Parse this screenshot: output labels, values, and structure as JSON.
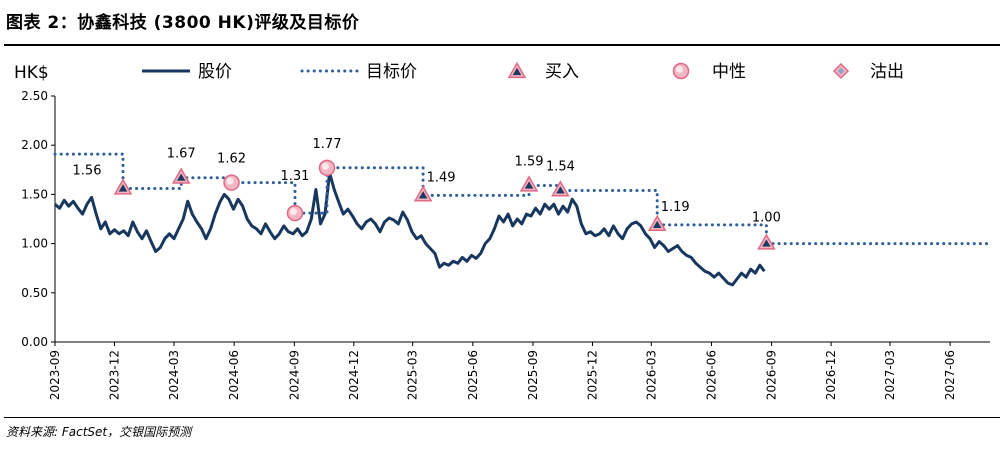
{
  "title": "图表 2：协鑫科技 (3800 HK)评级及目标价",
  "source": "资料来源: FactSet，交银国际预测",
  "colors": {
    "price": "#17375e",
    "target": "#2e5f9a",
    "marker_fill": "#f4b6c2",
    "marker_edge": "#e06a86",
    "buy_fill": "#1f3a60",
    "sell_fill": "#8fa8c8",
    "axis": "#000000"
  },
  "chart_data": {
    "type": "line",
    "unit_label": "HK$",
    "ylim": [
      0.0,
      2.5
    ],
    "y_ticks": [
      "0.00",
      "0.50",
      "1.00",
      "1.50",
      "2.00",
      "2.50"
    ],
    "x_ticks": [
      "2023-09",
      "2023-12",
      "2024-03",
      "2024-06",
      "2024-09",
      "2024-12",
      "2025-03",
      "2025-06",
      "2025-09",
      "2025-12",
      "2026-03",
      "2026-06",
      "2026-09",
      "2026-12",
      "2027-03",
      "2027-06"
    ],
    "xlim": [
      "2023-09-01",
      "2027-08-01"
    ],
    "legend": {
      "price": "股价",
      "target": "目标价",
      "buy": "买入",
      "neutral": "中性",
      "sell": "沽出"
    },
    "series": [
      {
        "name": "股价",
        "style": "solid",
        "points": [
          [
            "2023-09-01",
            1.4
          ],
          [
            "2023-09-08",
            1.36
          ],
          [
            "2023-09-15",
            1.44
          ],
          [
            "2023-09-22",
            1.38
          ],
          [
            "2023-09-29",
            1.43
          ],
          [
            "2023-10-06",
            1.36
          ],
          [
            "2023-10-13",
            1.3
          ],
          [
            "2023-10-20",
            1.4
          ],
          [
            "2023-10-27",
            1.47
          ],
          [
            "2023-11-03",
            1.3
          ],
          [
            "2023-11-10",
            1.15
          ],
          [
            "2023-11-17",
            1.22
          ],
          [
            "2023-11-24",
            1.1
          ],
          [
            "2023-12-01",
            1.14
          ],
          [
            "2023-12-08",
            1.1
          ],
          [
            "2023-12-15",
            1.13
          ],
          [
            "2023-12-22",
            1.08
          ],
          [
            "2023-12-29",
            1.22
          ],
          [
            "2024-01-05",
            1.12
          ],
          [
            "2024-01-12",
            1.05
          ],
          [
            "2024-01-19",
            1.13
          ],
          [
            "2024-01-26",
            1.02
          ],
          [
            "2024-02-02",
            0.92
          ],
          [
            "2024-02-09",
            0.96
          ],
          [
            "2024-02-16",
            1.05
          ],
          [
            "2024-02-23",
            1.1
          ],
          [
            "2024-03-01",
            1.05
          ],
          [
            "2024-03-08",
            1.15
          ],
          [
            "2024-03-15",
            1.25
          ],
          [
            "2024-03-22",
            1.43
          ],
          [
            "2024-03-29",
            1.3
          ],
          [
            "2024-04-05",
            1.22
          ],
          [
            "2024-04-12",
            1.15
          ],
          [
            "2024-04-19",
            1.05
          ],
          [
            "2024-04-26",
            1.15
          ],
          [
            "2024-05-03",
            1.3
          ],
          [
            "2024-05-10",
            1.42
          ],
          [
            "2024-05-17",
            1.5
          ],
          [
            "2024-05-24",
            1.45
          ],
          [
            "2024-05-31",
            1.35
          ],
          [
            "2024-06-07",
            1.45
          ],
          [
            "2024-06-14",
            1.38
          ],
          [
            "2024-06-21",
            1.25
          ],
          [
            "2024-06-28",
            1.18
          ],
          [
            "2024-07-05",
            1.15
          ],
          [
            "2024-07-12",
            1.1
          ],
          [
            "2024-07-19",
            1.2
          ],
          [
            "2024-07-26",
            1.12
          ],
          [
            "2024-08-02",
            1.05
          ],
          [
            "2024-08-09",
            1.1
          ],
          [
            "2024-08-16",
            1.18
          ],
          [
            "2024-08-23",
            1.12
          ],
          [
            "2024-08-30",
            1.1
          ],
          [
            "2024-09-06",
            1.15
          ],
          [
            "2024-09-13",
            1.08
          ],
          [
            "2024-09-20",
            1.12
          ],
          [
            "2024-09-27",
            1.25
          ],
          [
            "2024-10-04",
            1.55
          ],
          [
            "2024-10-11",
            1.2
          ],
          [
            "2024-10-18",
            1.3
          ],
          [
            "2024-10-25",
            1.72
          ],
          [
            "2024-11-01",
            1.55
          ],
          [
            "2024-11-08",
            1.42
          ],
          [
            "2024-11-15",
            1.3
          ],
          [
            "2024-11-22",
            1.35
          ],
          [
            "2024-11-29",
            1.28
          ],
          [
            "2024-12-06",
            1.2
          ],
          [
            "2024-12-13",
            1.15
          ],
          [
            "2024-12-20",
            1.22
          ],
          [
            "2024-12-27",
            1.25
          ],
          [
            "2025-01-03",
            1.2
          ],
          [
            "2025-01-10",
            1.12
          ],
          [
            "2025-01-17",
            1.22
          ],
          [
            "2025-01-24",
            1.26
          ],
          [
            "2025-01-31",
            1.24
          ],
          [
            "2025-02-07",
            1.2
          ],
          [
            "2025-02-14",
            1.32
          ],
          [
            "2025-02-21",
            1.24
          ],
          [
            "2025-02-28",
            1.12
          ],
          [
            "2025-03-07",
            1.05
          ],
          [
            "2025-03-14",
            1.08
          ],
          [
            "2025-03-21",
            1.0
          ],
          [
            "2025-03-28",
            0.95
          ],
          [
            "2025-04-04",
            0.9
          ],
          [
            "2025-04-11",
            0.76
          ],
          [
            "2025-04-18",
            0.8
          ],
          [
            "2025-04-25",
            0.78
          ],
          [
            "2025-05-02",
            0.82
          ],
          [
            "2025-05-09",
            0.8
          ],
          [
            "2025-05-16",
            0.86
          ],
          [
            "2025-05-23",
            0.82
          ],
          [
            "2025-05-30",
            0.88
          ],
          [
            "2025-06-06",
            0.85
          ],
          [
            "2025-06-13",
            0.9
          ],
          [
            "2025-06-20",
            1.0
          ],
          [
            "2025-06-27",
            1.05
          ],
          [
            "2025-07-04",
            1.15
          ],
          [
            "2025-07-11",
            1.28
          ],
          [
            "2025-07-18",
            1.22
          ],
          [
            "2025-07-25",
            1.3
          ],
          [
            "2025-08-01",
            1.18
          ],
          [
            "2025-08-08",
            1.25
          ],
          [
            "2025-08-15",
            1.2
          ],
          [
            "2025-08-22",
            1.3
          ],
          [
            "2025-08-29",
            1.28
          ],
          [
            "2025-09-05",
            1.36
          ],
          [
            "2025-09-12",
            1.3
          ],
          [
            "2025-09-19",
            1.4
          ],
          [
            "2025-09-26",
            1.35
          ],
          [
            "2025-10-03",
            1.4
          ],
          [
            "2025-10-10",
            1.3
          ],
          [
            "2025-10-17",
            1.38
          ],
          [
            "2025-10-24",
            1.32
          ],
          [
            "2025-10-31",
            1.45
          ],
          [
            "2025-11-07",
            1.38
          ],
          [
            "2025-11-14",
            1.2
          ],
          [
            "2025-11-21",
            1.1
          ],
          [
            "2025-11-28",
            1.12
          ],
          [
            "2025-12-05",
            1.08
          ],
          [
            "2025-12-12",
            1.1
          ],
          [
            "2025-12-19",
            1.15
          ],
          [
            "2025-12-26",
            1.08
          ],
          [
            "2026-01-02",
            1.18
          ],
          [
            "2026-01-09",
            1.1
          ],
          [
            "2026-01-16",
            1.05
          ],
          [
            "2026-01-23",
            1.15
          ],
          [
            "2026-01-30",
            1.2
          ],
          [
            "2026-02-06",
            1.22
          ],
          [
            "2026-02-13",
            1.18
          ],
          [
            "2026-02-20",
            1.1
          ],
          [
            "2026-02-27",
            1.05
          ],
          [
            "2026-03-06",
            0.96
          ],
          [
            "2026-03-13",
            1.02
          ],
          [
            "2026-03-20",
            0.98
          ],
          [
            "2026-03-27",
            0.92
          ],
          [
            "2026-04-03",
            0.95
          ],
          [
            "2026-04-10",
            0.98
          ],
          [
            "2026-04-17",
            0.92
          ],
          [
            "2026-04-24",
            0.88
          ],
          [
            "2026-05-01",
            0.86
          ],
          [
            "2026-05-08",
            0.8
          ],
          [
            "2026-05-15",
            0.76
          ],
          [
            "2026-05-22",
            0.72
          ],
          [
            "2026-05-29",
            0.7
          ],
          [
            "2026-06-05",
            0.66
          ],
          [
            "2026-06-12",
            0.7
          ],
          [
            "2026-06-19",
            0.65
          ],
          [
            "2026-06-26",
            0.6
          ],
          [
            "2026-07-03",
            0.58
          ],
          [
            "2026-07-10",
            0.64
          ],
          [
            "2026-07-17",
            0.7
          ],
          [
            "2026-07-24",
            0.66
          ],
          [
            "2026-07-31",
            0.74
          ],
          [
            "2026-08-07",
            0.7
          ],
          [
            "2026-08-14",
            0.78
          ],
          [
            "2026-08-21",
            0.72
          ]
        ]
      },
      {
        "name": "目标价",
        "style": "dotted",
        "points": [
          [
            "2023-09-01",
            1.91
          ],
          [
            "2023-12-14",
            1.91
          ],
          [
            "2023-12-14",
            1.56
          ],
          [
            "2024-03-12",
            1.56
          ],
          [
            "2024-03-12",
            1.67
          ],
          [
            "2024-05-28",
            1.67
          ],
          [
            "2024-05-28",
            1.62
          ],
          [
            "2024-09-02",
            1.62
          ],
          [
            "2024-09-02",
            1.31
          ],
          [
            "2024-10-21",
            1.31
          ],
          [
            "2024-10-21",
            1.77
          ],
          [
            "2025-03-17",
            1.77
          ],
          [
            "2025-03-17",
            1.49
          ],
          [
            "2025-08-26",
            1.49
          ],
          [
            "2025-08-26",
            1.59
          ],
          [
            "2025-10-13",
            1.59
          ],
          [
            "2025-10-13",
            1.54
          ],
          [
            "2026-03-10",
            1.54
          ],
          [
            "2026-03-10",
            1.19
          ],
          [
            "2026-08-24",
            1.19
          ],
          [
            "2026-08-24",
            1.0
          ],
          [
            "2027-08-01",
            1.0
          ]
        ]
      }
    ],
    "rating_events": [
      {
        "date": "2023-12-14",
        "target": 1.56,
        "rating": "买入",
        "label": "1.56"
      },
      {
        "date": "2024-03-12",
        "target": 1.67,
        "rating": "买入",
        "label": "1.67"
      },
      {
        "date": "2024-05-28",
        "target": 1.62,
        "rating": "中性",
        "label": "1.62"
      },
      {
        "date": "2024-09-02",
        "target": 1.31,
        "rating": "中性",
        "label": "1.31"
      },
      {
        "date": "2024-10-21",
        "target": 1.77,
        "rating": "中性",
        "label": "1.77"
      },
      {
        "date": "2025-03-17",
        "target": 1.49,
        "rating": "买入",
        "label": "1.49"
      },
      {
        "date": "2025-08-26",
        "target": 1.59,
        "rating": "买入",
        "label": "1.59"
      },
      {
        "date": "2025-10-13",
        "target": 1.54,
        "rating": "买入",
        "label": "1.54"
      },
      {
        "date": "2026-03-10",
        "target": 1.19,
        "rating": "买入",
        "label": "1.19"
      },
      {
        "date": "2026-08-24",
        "target": 1.0,
        "rating": "买入",
        "label": "1.00"
      }
    ]
  }
}
